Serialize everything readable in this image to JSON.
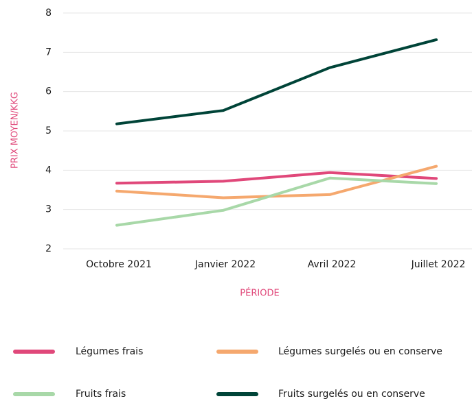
{
  "chart_data": {
    "type": "line",
    "categories": [
      "Octobre 2021",
      "Janvier 2022",
      "Avril 2022",
      "Juillet 2022"
    ],
    "series": [
      {
        "name": "Légumes frais",
        "color": "#e0487a",
        "values": [
          3.67,
          3.72,
          3.94,
          3.79
        ]
      },
      {
        "name": "Légumes surgelés ou en conserve",
        "color": "#f5a86e",
        "values": [
          3.47,
          3.3,
          3.38,
          4.1
        ]
      },
      {
        "name": "Fruits frais",
        "color": "#a8d8a8",
        "values": [
          2.6,
          2.98,
          3.8,
          3.66
        ]
      },
      {
        "name": "Fruits surgelés ou en conserve",
        "color": "#004438",
        "values": [
          5.18,
          5.52,
          6.61,
          7.32
        ]
      }
    ],
    "y_label": "PRIX MOYEN/KKG",
    "x_label": "PÉRIODE",
    "ylim": [
      2,
      8
    ],
    "yticks": [
      2,
      3,
      4,
      5,
      6,
      7,
      8
    ],
    "grid": true
  }
}
